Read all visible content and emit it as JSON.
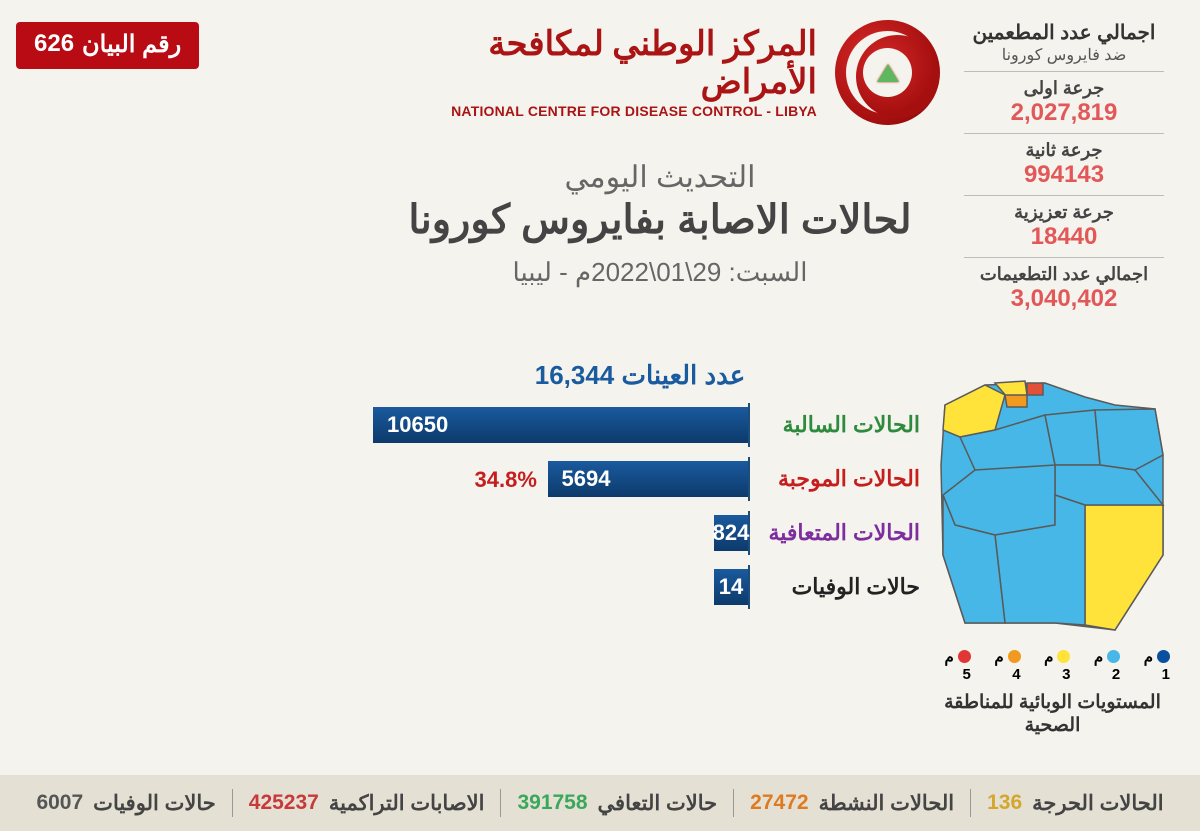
{
  "badge": {
    "label": "رقم البيان",
    "num": "626",
    "bg": "#b80b14"
  },
  "org": {
    "ar": "المركز الوطني لمكافحة الأمراض",
    "en": "NATIONAL CENTRE FOR DISEASE CONTROL - LIBYA"
  },
  "title": {
    "line1": "التحديث اليومي",
    "line2": "لحالات الاصابة بفايروس كورونا",
    "line3": "السبت: 29\\01\\2022م - ليبيا"
  },
  "vax": {
    "header1": "اجمالي عدد المطعمين",
    "header2": "ضد فايروس كورونا",
    "rows": [
      {
        "label": "جرعة اولى",
        "value": "2,027,819",
        "color": "#e25858"
      },
      {
        "label": "جرعة ثانية",
        "value": "994143",
        "color": "#e25858"
      },
      {
        "label": "جرعة تعزيزية",
        "value": "18440",
        "color": "#e25858"
      },
      {
        "label": "اجمالي عدد التطعيمات",
        "value": "3,040,402",
        "color": "#e25858"
      }
    ]
  },
  "chart": {
    "type": "bar",
    "title_label": "عدد العينات",
    "title_value": "16,344",
    "max": 10650,
    "bar_color": "#124a7c",
    "bars": [
      {
        "label": "الحالات السالبة",
        "label_color": "#2e8b3d",
        "value": 10650,
        "text": "10650"
      },
      {
        "label": "الحالات الموجبة",
        "label_color": "#c51e1e",
        "value": 5694,
        "text": "5694",
        "pct": "34.8%",
        "pct_color": "#c51e1e"
      },
      {
        "label": "الحالات المتعافية",
        "label_color": "#7e2d9e",
        "value": 824,
        "text": "824"
      },
      {
        "label": "حالات الوفيات",
        "label_color": "#222222",
        "value": 14,
        "text": "14"
      }
    ]
  },
  "map": {
    "caption": "المستويات الوبائية للمناطقة الصحية",
    "legend": [
      {
        "label": "م 1",
        "color": "#0a4fa0"
      },
      {
        "label": "م 2",
        "color": "#46b7e6"
      },
      {
        "label": "م 3",
        "color": "#ffe23a"
      },
      {
        "label": "م 4",
        "color": "#f19a1f"
      },
      {
        "label": "م 5",
        "color": "#e23636"
      }
    ],
    "region_colors": {
      "main": "#46b7e6",
      "yellow": "#ffe23a",
      "red": "#e25038",
      "orange": "#f19a1f",
      "stroke": "#5a5a5a"
    }
  },
  "footer": [
    {
      "label": "الحالات الحرجة",
      "value": "136",
      "color": "#d4a72c"
    },
    {
      "label": "الحالات النشطة",
      "value": "27472",
      "color": "#e07a1f"
    },
    {
      "label": "حالات التعافي",
      "value": "391758",
      "color": "#3aa85b"
    },
    {
      "label": "الاصابات التراكمية",
      "value": "425237",
      "color": "#c73a3a"
    },
    {
      "label": "حالات الوفيات",
      "value": "6007",
      "color": "#555555"
    }
  ]
}
